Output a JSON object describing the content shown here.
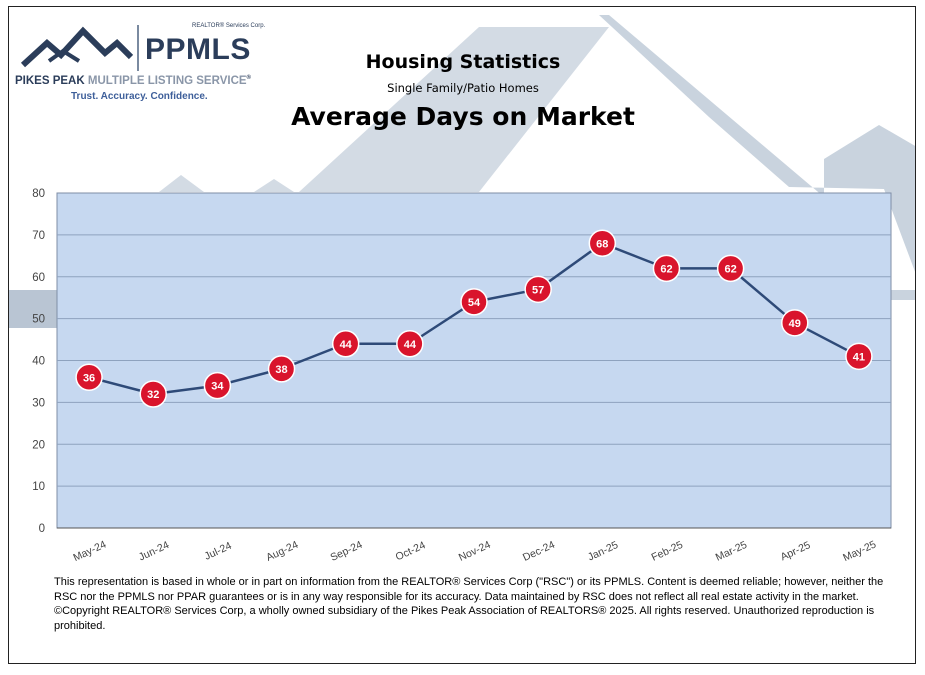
{
  "logo": {
    "corp_label": "REALTOR® Services Corp.",
    "brand": "PPMLS",
    "service_primary": "PIKES PEAK",
    "service_secondary": "MULTIPLE LISTING SERVICE",
    "service_mark": "®",
    "tagline": "Trust. Accuracy. Confidence."
  },
  "header": {
    "title": "Housing Statistics",
    "subtitle": "Single Family/Patio Homes",
    "metric": "Average Days on Market"
  },
  "chart_data": {
    "type": "line",
    "categories": [
      "May-24",
      "Jun-24",
      "Jul-24",
      "Aug-24",
      "Sep-24",
      "Oct-24",
      "Nov-24",
      "Dec-24",
      "Jan-25",
      "Feb-25",
      "Mar-25",
      "Apr-25",
      "May-25"
    ],
    "values": [
      36,
      32,
      34,
      38,
      44,
      44,
      54,
      57,
      68,
      62,
      62,
      49,
      41
    ],
    "ylim": [
      0,
      80
    ],
    "yticks": [
      0,
      10,
      20,
      30,
      40,
      50,
      60,
      70,
      80
    ],
    "grid": true,
    "data_labels": true,
    "colors": {
      "plot_bg": "#c6d8f0",
      "line": "#2e4a78",
      "marker": "#d9142c",
      "gridline": "#8ea2be"
    }
  },
  "footer": {
    "disclaimer": "This representation is based in whole or in part on information from the REALTOR® Services Corp (\"RSC\") or its PPMLS. Content is deemed reliable; however, neither the RSC nor the PPMLS nor PPAR guarantees or is in any way responsible for its accuracy. Data maintained by RSC does not reflect all real estate activity in the market. ©Copyright REALTOR® Services Corp, a wholly owned subsidiary of the Pikes Peak Association of REALTORS® 2025. All rights reserved. Unauthorized reproduction is prohibited."
  }
}
